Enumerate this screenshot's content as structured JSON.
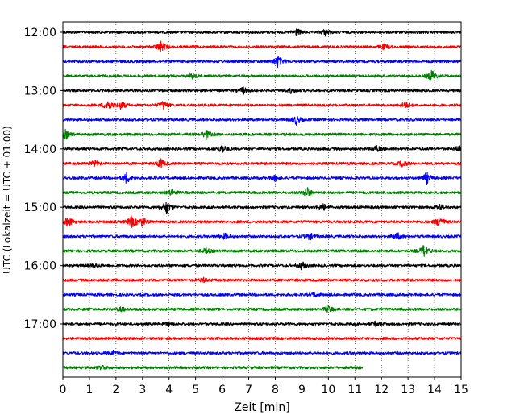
{
  "chart_data": {
    "type": "line",
    "subtype": "helicorder",
    "title": "",
    "xlabel": "Zeit  [min]",
    "ylabel": "UTC (Lokalzeit = UTC + 01:00)",
    "xlim": [
      0,
      15
    ],
    "x_ticks": [
      "0",
      "1",
      "2",
      "3",
      "4",
      "5",
      "6",
      "7",
      "8",
      "9",
      "10",
      "11",
      "12",
      "13",
      "14",
      "15"
    ],
    "y_ticks": [
      "12:00",
      "13:00",
      "14:00",
      "15:00",
      "16:00",
      "17:00"
    ],
    "grid": "vertical dotted",
    "color_cycle": [
      "#000000",
      "#ff0000",
      "#0000ff",
      "#008000"
    ],
    "rows": [
      {
        "start": "12:00",
        "color": "#000000",
        "end_min": 15,
        "events": [
          [
            8.8,
            0.6
          ],
          [
            9.9,
            0.5
          ]
        ]
      },
      {
        "start": "12:15",
        "color": "#ff0000",
        "end_min": 15,
        "events": [
          [
            3.7,
            0.8
          ],
          [
            12.1,
            0.4
          ]
        ]
      },
      {
        "start": "12:30",
        "color": "#0000ff",
        "end_min": 15,
        "events": [
          [
            8.1,
            0.9
          ]
        ]
      },
      {
        "start": "12:45",
        "color": "#008000",
        "end_min": 15,
        "events": [
          [
            4.9,
            0.4
          ],
          [
            13.9,
            0.9
          ]
        ]
      },
      {
        "start": "13:00",
        "color": "#000000",
        "end_min": 15,
        "events": [
          [
            6.8,
            0.5
          ],
          [
            8.6,
            0.4
          ]
        ]
      },
      {
        "start": "13:15",
        "color": "#ff0000",
        "end_min": 15,
        "events": [
          [
            1.7,
            0.9
          ],
          [
            2.2,
            0.6
          ],
          [
            3.8,
            0.7
          ],
          [
            12.9,
            0.5
          ]
        ]
      },
      {
        "start": "13:30",
        "color": "#0000ff",
        "end_min": 15,
        "events": [
          [
            8.8,
            0.7
          ]
        ]
      },
      {
        "start": "13:45",
        "color": "#008000",
        "end_min": 15,
        "events": [
          [
            0.1,
            0.7
          ],
          [
            5.4,
            0.7
          ]
        ]
      },
      {
        "start": "14:00",
        "color": "#000000",
        "end_min": 15,
        "events": [
          [
            6.0,
            0.7
          ],
          [
            11.8,
            0.5
          ],
          [
            14.9,
            0.4
          ]
        ]
      },
      {
        "start": "14:15",
        "color": "#ff0000",
        "end_min": 15,
        "events": [
          [
            1.2,
            0.5
          ],
          [
            3.7,
            0.7
          ],
          [
            12.8,
            0.5
          ]
        ]
      },
      {
        "start": "14:30",
        "color": "#0000ff",
        "end_min": 15,
        "events": [
          [
            2.4,
            0.8
          ],
          [
            8.0,
            0.4
          ],
          [
            13.7,
            0.9
          ]
        ]
      },
      {
        "start": "14:45",
        "color": "#008000",
        "end_min": 15,
        "events": [
          [
            4.1,
            0.5
          ],
          [
            9.2,
            0.8
          ]
        ]
      },
      {
        "start": "15:00",
        "color": "#000000",
        "end_min": 15,
        "events": [
          [
            3.9,
            1.0
          ],
          [
            9.8,
            0.5
          ],
          [
            14.2,
            0.4
          ]
        ]
      },
      {
        "start": "15:15",
        "color": "#ff0000",
        "end_min": 15,
        "events": [
          [
            0.2,
            0.8
          ],
          [
            2.6,
            0.9
          ],
          [
            3.0,
            0.7
          ],
          [
            14.2,
            0.9
          ]
        ]
      },
      {
        "start": "15:30",
        "color": "#0000ff",
        "end_min": 15,
        "events": [
          [
            6.1,
            0.4
          ],
          [
            9.3,
            0.5
          ],
          [
            12.6,
            0.5
          ]
        ]
      },
      {
        "start": "15:45",
        "color": "#008000",
        "end_min": 15,
        "events": [
          [
            5.4,
            0.4
          ],
          [
            13.6,
            0.9
          ]
        ]
      },
      {
        "start": "16:00",
        "color": "#000000",
        "end_min": 15,
        "events": [
          [
            9.0,
            0.6
          ],
          [
            1.2,
            0.3
          ]
        ]
      },
      {
        "start": "16:15",
        "color": "#ff0000",
        "end_min": 15,
        "events": [
          [
            5.3,
            0.3
          ]
        ]
      },
      {
        "start": "16:30",
        "color": "#0000ff",
        "end_min": 15,
        "events": [
          [
            9.5,
            0.3
          ]
        ]
      },
      {
        "start": "16:45",
        "color": "#008000",
        "end_min": 15,
        "events": [
          [
            2.2,
            0.3
          ],
          [
            10.0,
            0.5
          ]
        ]
      },
      {
        "start": "17:00",
        "color": "#000000",
        "end_min": 15,
        "events": [
          [
            4.0,
            0.3
          ],
          [
            11.8,
            0.4
          ]
        ]
      },
      {
        "start": "17:15",
        "color": "#ff0000",
        "end_min": 15,
        "events": []
      },
      {
        "start": "17:30",
        "color": "#0000ff",
        "end_min": 15,
        "events": [
          [
            1.9,
            0.3
          ]
        ]
      },
      {
        "start": "17:45",
        "color": "#008000",
        "end_min": 11.3,
        "events": [
          [
            1.5,
            0.3
          ]
        ]
      }
    ]
  }
}
